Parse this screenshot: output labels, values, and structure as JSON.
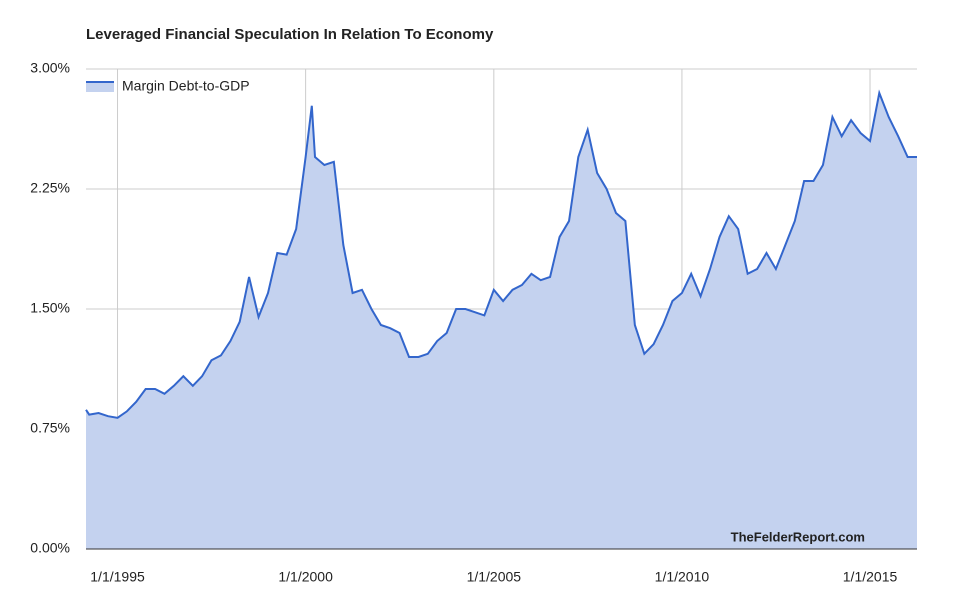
{
  "chart_data": {
    "type": "area",
    "title": "Leveraged Financial Speculation In Relation To Economy",
    "annotation": "TheFelderReport.com",
    "x": [
      "3/1/1994",
      "4/1/1994",
      "7/1/1994",
      "10/1/1994",
      "1/1/1995",
      "4/1/1995",
      "7/1/1995",
      "10/1/1995",
      "1/1/1996",
      "4/1/1996",
      "7/1/1996",
      "10/1/1996",
      "1/1/1997",
      "4/1/1997",
      "7/1/1997",
      "10/1/1997",
      "1/1/1998",
      "4/1/1998",
      "7/1/1998",
      "10/1/1998",
      "1/1/1999",
      "4/1/1999",
      "7/1/1999",
      "10/1/1999",
      "1/1/2000",
      "3/1/2000",
      "4/1/2000",
      "7/1/2000",
      "10/1/2000",
      "1/1/2001",
      "4/1/2001",
      "7/1/2001",
      "10/1/2001",
      "1/1/2002",
      "4/1/2002",
      "7/1/2002",
      "10/1/2002",
      "1/1/2003",
      "4/1/2003",
      "7/1/2003",
      "10/1/2003",
      "1/1/2004",
      "4/1/2004",
      "7/1/2004",
      "10/1/2004",
      "1/1/2005",
      "4/1/2005",
      "7/1/2005",
      "10/1/2005",
      "1/1/2006",
      "4/1/2006",
      "7/1/2006",
      "10/1/2006",
      "1/1/2007",
      "4/1/2007",
      "7/1/2007",
      "10/1/2007",
      "1/1/2008",
      "4/1/2008",
      "7/1/2008",
      "10/1/2008",
      "1/1/2009",
      "4/1/2009",
      "7/1/2009",
      "10/1/2009",
      "1/1/2010",
      "4/1/2010",
      "7/1/2010",
      "10/1/2010",
      "1/1/2011",
      "4/1/2011",
      "7/1/2011",
      "10/1/2011",
      "1/1/2012",
      "4/1/2012",
      "7/1/2012",
      "10/1/2012",
      "1/1/2013",
      "4/1/2013",
      "7/1/2013",
      "10/1/2013",
      "1/1/2014",
      "4/1/2014",
      "7/1/2014",
      "10/1/2014",
      "1/1/2015",
      "4/1/2015",
      "7/1/2015",
      "10/1/2015",
      "1/1/2016",
      "4/1/2016"
    ],
    "series": [
      {
        "name": "Margin Debt-to-GDP",
        "color": "#3366cc",
        "fill": "#c4d2ef",
        "values": [
          0.87,
          0.84,
          0.85,
          0.83,
          0.82,
          0.86,
          0.92,
          1.0,
          1.0,
          0.97,
          1.02,
          1.08,
          1.02,
          1.08,
          1.18,
          1.21,
          1.3,
          1.42,
          1.7,
          1.45,
          1.6,
          1.85,
          1.84,
          2.0,
          2.45,
          2.77,
          2.45,
          2.4,
          2.42,
          1.9,
          1.6,
          1.62,
          1.5,
          1.4,
          1.38,
          1.35,
          1.2,
          1.2,
          1.22,
          1.3,
          1.35,
          1.5,
          1.5,
          1.48,
          1.46,
          1.62,
          1.55,
          1.62,
          1.65,
          1.72,
          1.68,
          1.7,
          1.95,
          2.05,
          2.45,
          2.62,
          2.35,
          2.25,
          2.1,
          2.05,
          1.4,
          1.22,
          1.28,
          1.4,
          1.55,
          1.6,
          1.72,
          1.58,
          1.75,
          1.95,
          2.08,
          2.0,
          1.72,
          1.75,
          1.85,
          1.75,
          1.9,
          2.05,
          2.3,
          2.3,
          2.4,
          2.7,
          2.58,
          2.68,
          2.6,
          2.55,
          2.85,
          2.7,
          2.58,
          2.45,
          2.45
        ]
      }
    ],
    "xlim": [
      "3/1/1994",
      "4/1/2016"
    ],
    "xticks": [
      "1/1/1995",
      "1/1/2000",
      "1/1/2005",
      "1/1/2010",
      "1/1/2015"
    ],
    "ylim": [
      0,
      3
    ],
    "yticks": [
      {
        "value": 0,
        "label": "0.00%"
      },
      {
        "value": 0.75,
        "label": "0.75%"
      },
      {
        "value": 1.5,
        "label": "1.50%"
      },
      {
        "value": 2.25,
        "label": "2.25%"
      },
      {
        "value": 3,
        "label": "3.00%"
      }
    ],
    "grid": true,
    "legend": "top-left"
  }
}
